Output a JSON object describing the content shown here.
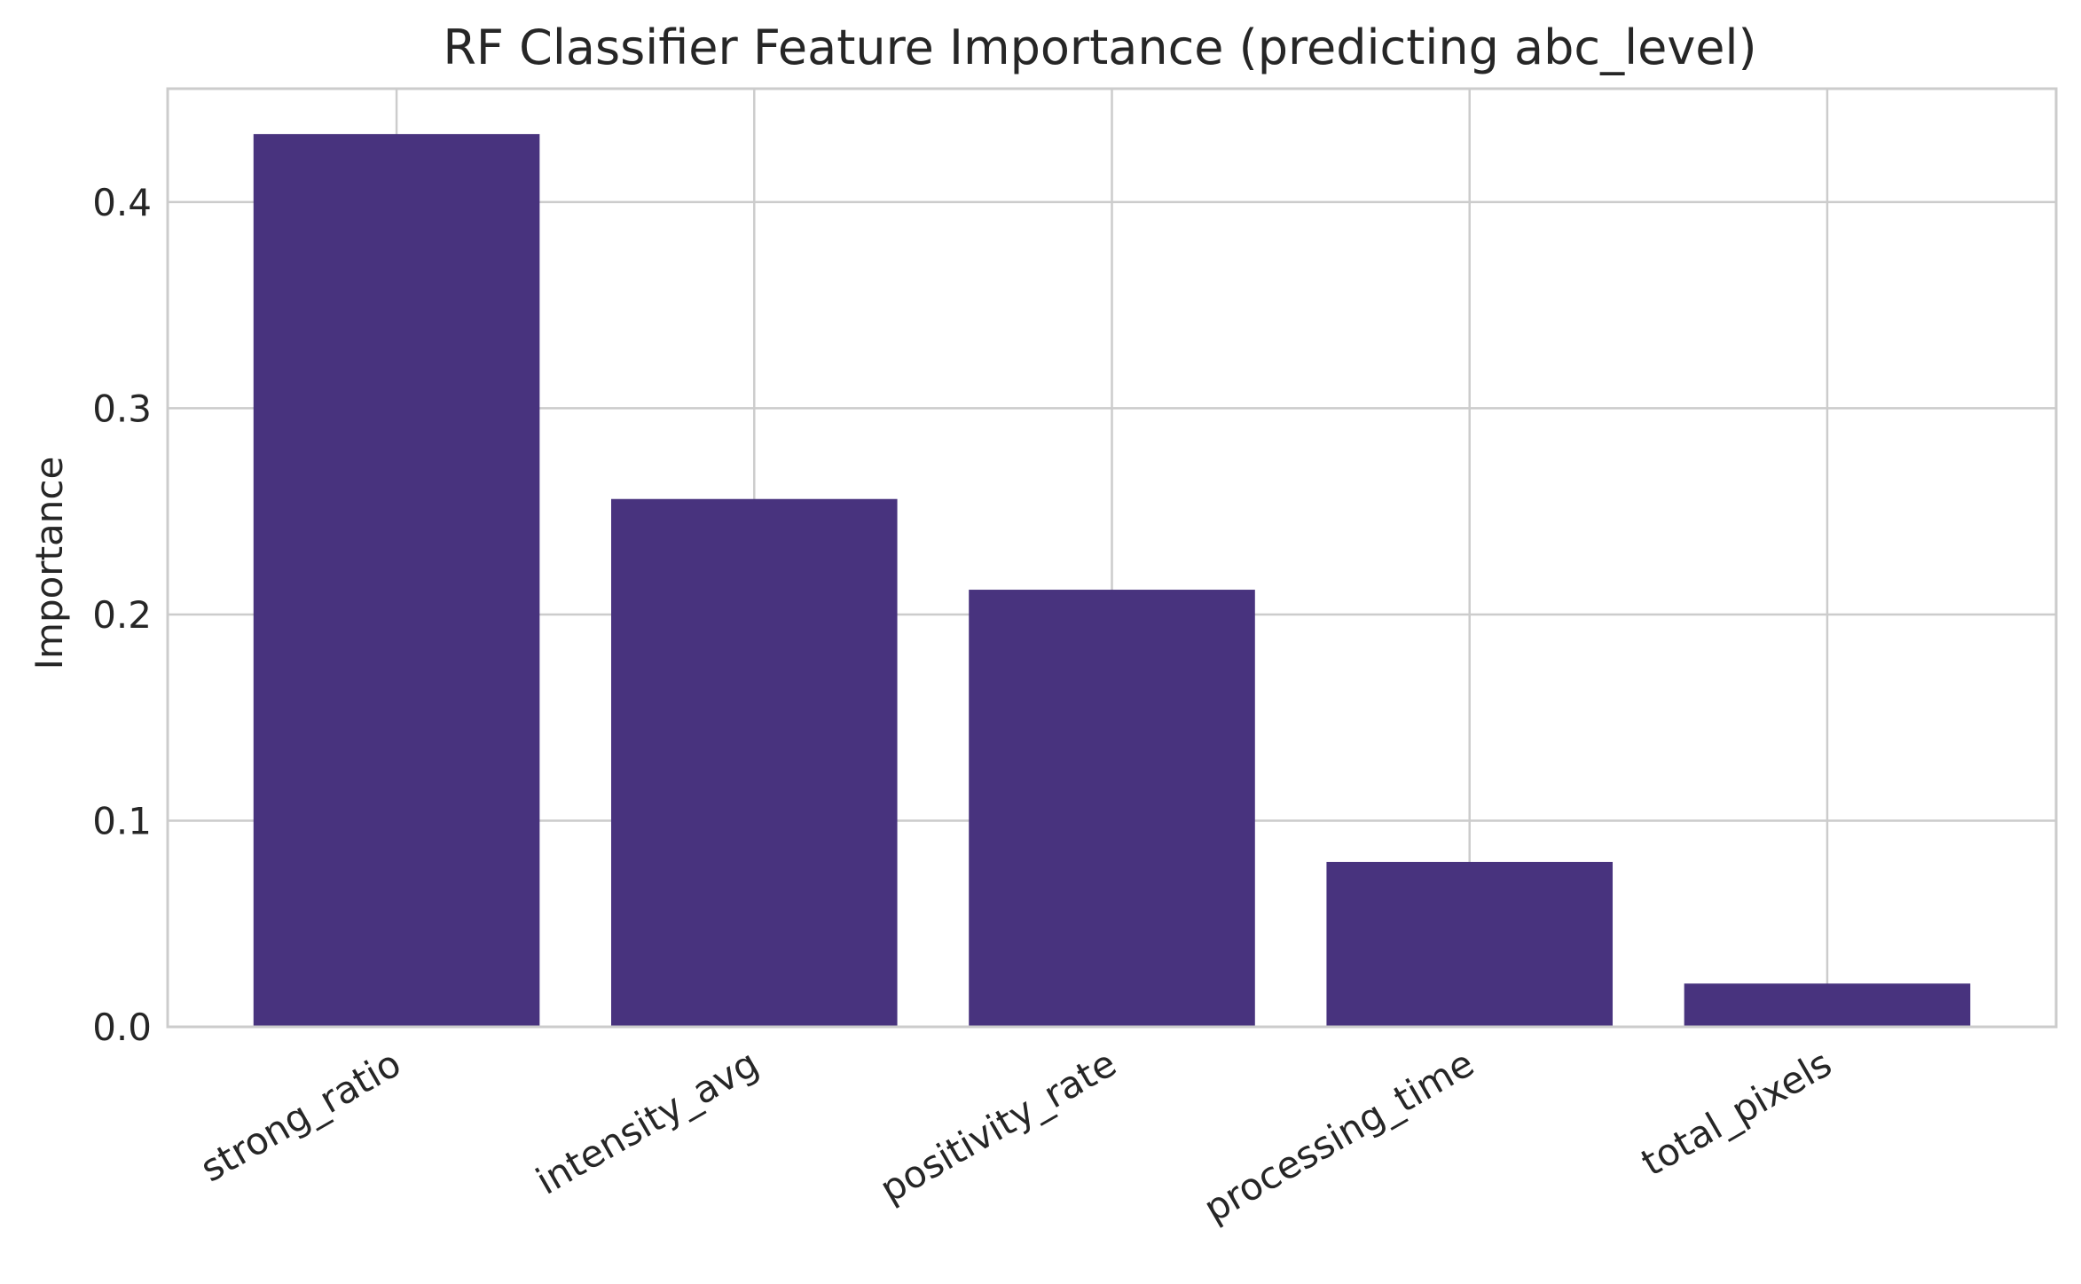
{
  "chart_data": {
    "type": "bar",
    "title": "RF Classifier Feature Importance (predicting abc_level)",
    "xlabel": "",
    "ylabel": "Importance",
    "categories": [
      "strong_ratio",
      "intensity_avg",
      "positivity_rate",
      "processing_time",
      "total_pixels"
    ],
    "values": [
      0.433,
      0.256,
      0.212,
      0.08,
      0.021
    ],
    "ylim": [
      0,
      0.455
    ],
    "yticks": [
      0.0,
      0.1,
      0.2,
      0.3,
      0.4
    ],
    "ytick_labels": [
      "0.0",
      "0.1",
      "0.2",
      "0.3",
      "0.4"
    ],
    "grid": true,
    "bar_color": "#48337e",
    "grid_color": "#cccccc"
  }
}
